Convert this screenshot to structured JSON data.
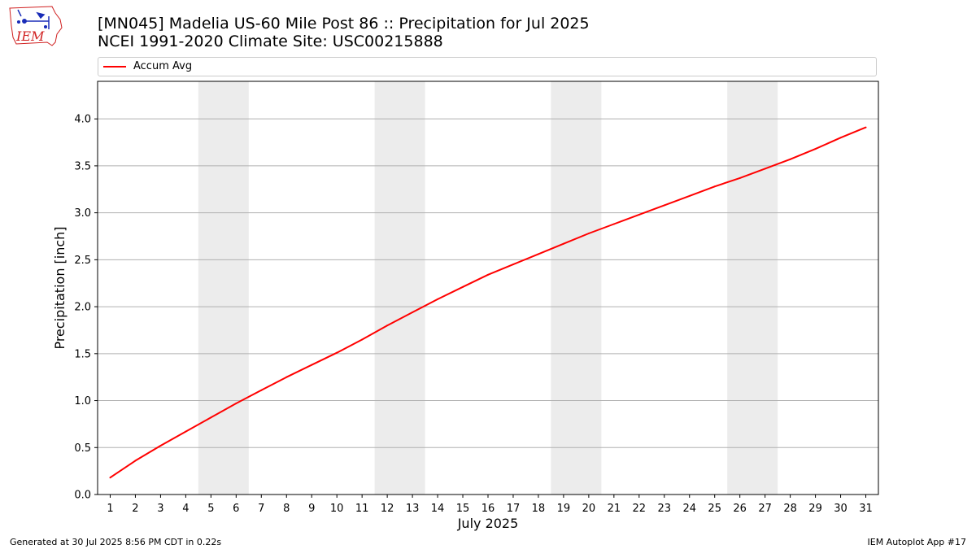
{
  "header": {
    "title_line1": "[MN045] Madelia US-60 Mile Post 86 :: Precipitation for Jul 2025",
    "title_line2": "NCEI 1991-2020 Climate Site: USC00215888",
    "logo_text": "IEM"
  },
  "footer": {
    "generated": "Generated at 30 Jul 2025 8:56 PM CDT in 0.22s",
    "app": "IEM Autoplot App #17"
  },
  "colors": {
    "line": "#ff0000",
    "weekend_band": "#ececec",
    "grid": "#b0b0b0",
    "logo": "#d02020"
  },
  "chart_data": {
    "type": "line",
    "title": "[MN045] Madelia US-60 Mile Post 86 :: Precipitation for Jul 2025",
    "xlabel": "July 2025",
    "ylabel": "Precipitation [inch]",
    "xlim": [
      0.5,
      31.5
    ],
    "ylim": [
      0,
      4.4
    ],
    "x_ticks": [
      1,
      2,
      3,
      4,
      5,
      6,
      7,
      8,
      9,
      10,
      11,
      12,
      13,
      14,
      15,
      16,
      17,
      18,
      19,
      20,
      21,
      22,
      23,
      24,
      25,
      26,
      27,
      28,
      29,
      30,
      31
    ],
    "y_ticks": [
      "0.0",
      "0.5",
      "1.0",
      "1.5",
      "2.0",
      "2.5",
      "3.0",
      "3.5",
      "4.0"
    ],
    "grid": "horizontal",
    "legend_position": "top",
    "weekend_shading": [
      [
        4.5,
        6.5
      ],
      [
        11.5,
        13.5
      ],
      [
        18.5,
        20.5
      ],
      [
        25.5,
        27.5
      ]
    ],
    "series": [
      {
        "name": "Accum Avg",
        "color": "#ff0000",
        "x": [
          1,
          2,
          3,
          4,
          5,
          6,
          7,
          8,
          9,
          10,
          11,
          12,
          13,
          14,
          15,
          16,
          17,
          18,
          19,
          20,
          21,
          22,
          23,
          24,
          25,
          26,
          27,
          28,
          29,
          30,
          31
        ],
        "values": [
          0.18,
          0.36,
          0.52,
          0.67,
          0.82,
          0.97,
          1.11,
          1.25,
          1.38,
          1.51,
          1.65,
          1.8,
          1.94,
          2.08,
          2.21,
          2.34,
          2.45,
          2.56,
          2.67,
          2.78,
          2.88,
          2.98,
          3.08,
          3.18,
          3.28,
          3.37,
          3.47,
          3.57,
          3.68,
          3.8,
          3.91
        ]
      }
    ]
  }
}
